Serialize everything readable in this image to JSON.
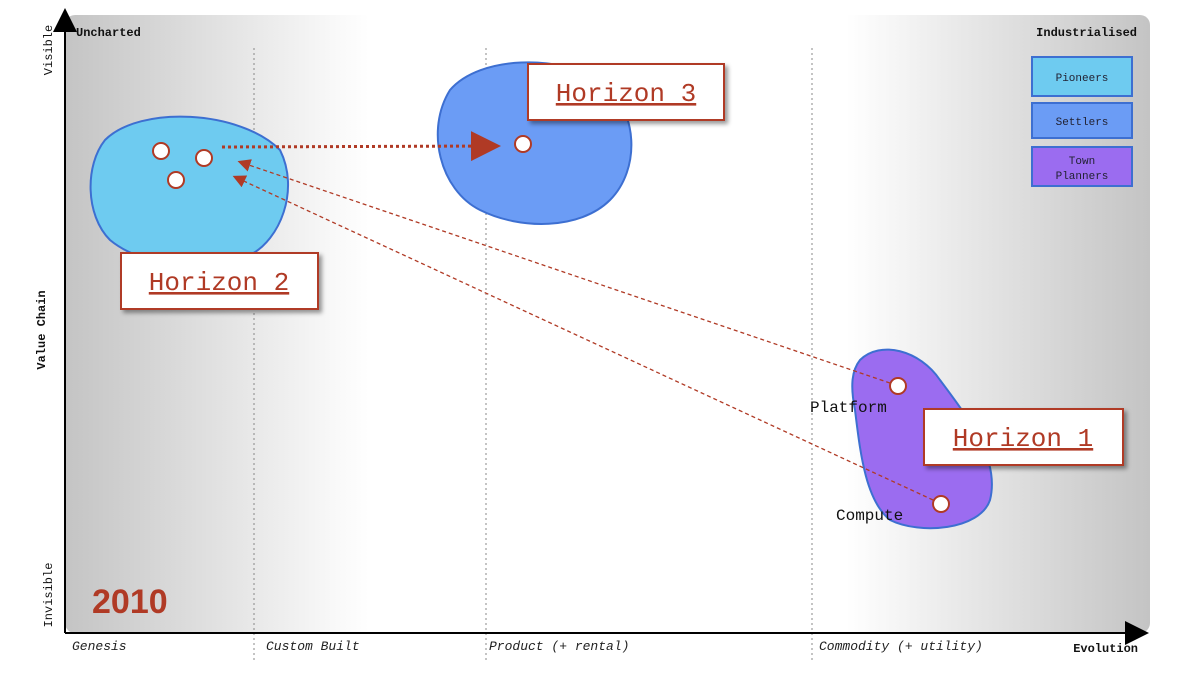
{
  "corners": {
    "top_left": "Uncharted",
    "top_right": "Industrialised"
  },
  "y_axis": {
    "top": "Visible",
    "title": "Value Chain",
    "bottom": "Invisible"
  },
  "x_axis": {
    "stages": [
      "Genesis",
      "Custom Built",
      "Product (+ rental)",
      "Commodity (+ utility)"
    ],
    "title": "Evolution"
  },
  "horizons": [
    "Horizon 3",
    "Horizon 2",
    "Horizon 1"
  ],
  "legend": [
    {
      "lines": [
        "Pioneers"
      ]
    },
    {
      "lines": [
        "Settlers"
      ]
    },
    {
      "lines": [
        "Town",
        "Planners"
      ]
    }
  ],
  "nodes": [
    "Platform",
    "Compute"
  ],
  "year": "2010"
}
